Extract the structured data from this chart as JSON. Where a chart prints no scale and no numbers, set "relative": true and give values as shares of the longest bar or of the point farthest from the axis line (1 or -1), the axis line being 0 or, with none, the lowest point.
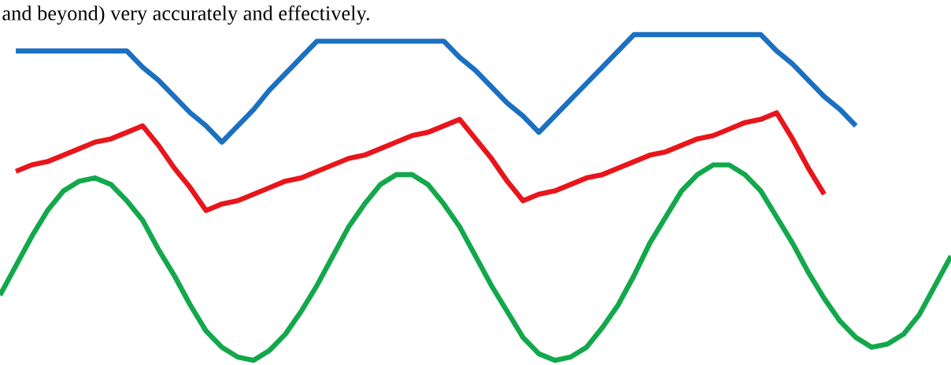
{
  "chart_data": {
    "type": "line",
    "relative": true,
    "annotations": [
      "and beyond) very accurately and effectively."
    ],
    "line_style": "solid",
    "categories": [
      null,
      null,
      null,
      null,
      null,
      null,
      null,
      null,
      null,
      null,
      null,
      null,
      null,
      null,
      null,
      null,
      null,
      null,
      null,
      null,
      null,
      null,
      null,
      null,
      null,
      null,
      null,
      null,
      null,
      null,
      null,
      null,
      null,
      null,
      null,
      null,
      null,
      null,
      null,
      null,
      null,
      null,
      null,
      null,
      null,
      null,
      null,
      null,
      null,
      null,
      null,
      null,
      null,
      null,
      null,
      null,
      null,
      null,
      null,
      null,
      null
    ],
    "series": [
      {
        "color": "#1b70c1",
        "values": [
          null,
          0.95,
          0.95,
          0.95,
          0.95,
          0.95,
          0.95,
          0.95,
          0.95,
          0.9,
          0.86,
          0.81,
          0.76,
          0.72,
          0.67,
          0.72,
          0.77,
          0.83,
          0.88,
          0.93,
          0.98,
          0.98,
          0.98,
          0.98,
          0.98,
          0.98,
          0.98,
          0.98,
          0.98,
          0.93,
          0.89,
          0.84,
          0.79,
          0.75,
          0.7,
          0.75,
          0.8,
          0.85,
          0.9,
          0.95,
          1.0,
          1.0,
          1.0,
          1.0,
          1.0,
          1.0,
          1.0,
          1.0,
          1.0,
          0.95,
          0.91,
          0.86,
          0.81,
          0.77,
          0.72,
          null,
          null,
          null,
          null,
          null,
          null
        ]
      },
      {
        "color": "#e8151b",
        "values": [
          null,
          0.58,
          0.6,
          0.61,
          0.63,
          0.65,
          0.67,
          0.68,
          0.7,
          0.72,
          0.66,
          0.59,
          0.53,
          0.46,
          0.48,
          0.49,
          0.51,
          0.53,
          0.55,
          0.56,
          0.58,
          0.6,
          0.62,
          0.63,
          0.65,
          0.67,
          0.69,
          0.7,
          0.72,
          0.74,
          0.68,
          0.62,
          0.55,
          0.49,
          0.51,
          0.52,
          0.54,
          0.56,
          0.57,
          0.59,
          0.61,
          0.63,
          0.64,
          0.66,
          0.68,
          0.69,
          0.71,
          0.73,
          0.74,
          0.76,
          0.68,
          0.59,
          0.51,
          null,
          null,
          null,
          null,
          null,
          null,
          null,
          null
        ]
      },
      {
        "color": "#12a84b",
        "values": [
          0.2,
          0.29,
          0.38,
          0.46,
          0.52,
          0.55,
          0.56,
          0.54,
          0.49,
          0.43,
          0.34,
          0.26,
          0.17,
          0.09,
          0.04,
          0.01,
          0.0,
          0.03,
          0.08,
          0.15,
          0.23,
          0.32,
          0.41,
          0.48,
          0.54,
          0.57,
          0.57,
          0.54,
          0.48,
          0.41,
          0.32,
          0.23,
          0.15,
          0.07,
          0.02,
          0.0,
          0.01,
          0.04,
          0.1,
          0.17,
          0.26,
          0.36,
          0.44,
          0.52,
          0.57,
          0.6,
          0.6,
          0.57,
          0.52,
          0.44,
          0.36,
          0.27,
          0.19,
          0.12,
          0.07,
          0.04,
          0.05,
          0.08,
          0.14,
          0.23,
          0.32
        ]
      }
    ]
  }
}
